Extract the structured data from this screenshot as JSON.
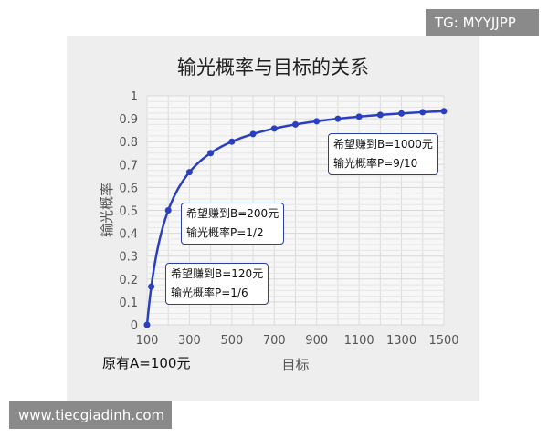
{
  "watermarks": {
    "top_right": "TG: MYYJJPP",
    "bottom_left": "www.tiecgiadinh.com"
  },
  "chart_data": {
    "type": "line",
    "title": "输光概率与目标的关系",
    "xlabel": "目标",
    "ylabel": "输光概率",
    "x": [
      100,
      120,
      200,
      300,
      400,
      500,
      600,
      700,
      800,
      900,
      1000,
      1100,
      1200,
      1300,
      1400,
      1500
    ],
    "y": [
      0,
      0.1667,
      0.5,
      0.6667,
      0.75,
      0.8,
      0.8333,
      0.8571,
      0.875,
      0.8889,
      0.9,
      0.9091,
      0.9167,
      0.9231,
      0.9286,
      0.9333
    ],
    "xlim": [
      100,
      1500
    ],
    "ylim": [
      0,
      1
    ],
    "xticks": [
      "100",
      "300",
      "500",
      "700",
      "900",
      "1100",
      "1300",
      "1500"
    ],
    "yticks": [
      "0",
      "0.1",
      "0.2",
      "0.3",
      "0.4",
      "0.5",
      "0.6",
      "0.7",
      "0.8",
      "0.9",
      "1"
    ],
    "grid": true,
    "line_color": "#2a3fbf",
    "note": "原有A=100元",
    "annotations": [
      {
        "x": 120,
        "line1": "希望赚到B=120元",
        "line2": "输光概率P=1/6"
      },
      {
        "x": 200,
        "line1": "希望赚到B=200元",
        "line2": "输光概率P=1/2"
      },
      {
        "x": 1000,
        "line1": "希望赚到B=1000元",
        "line2": "输光概率P=9/10"
      }
    ]
  }
}
